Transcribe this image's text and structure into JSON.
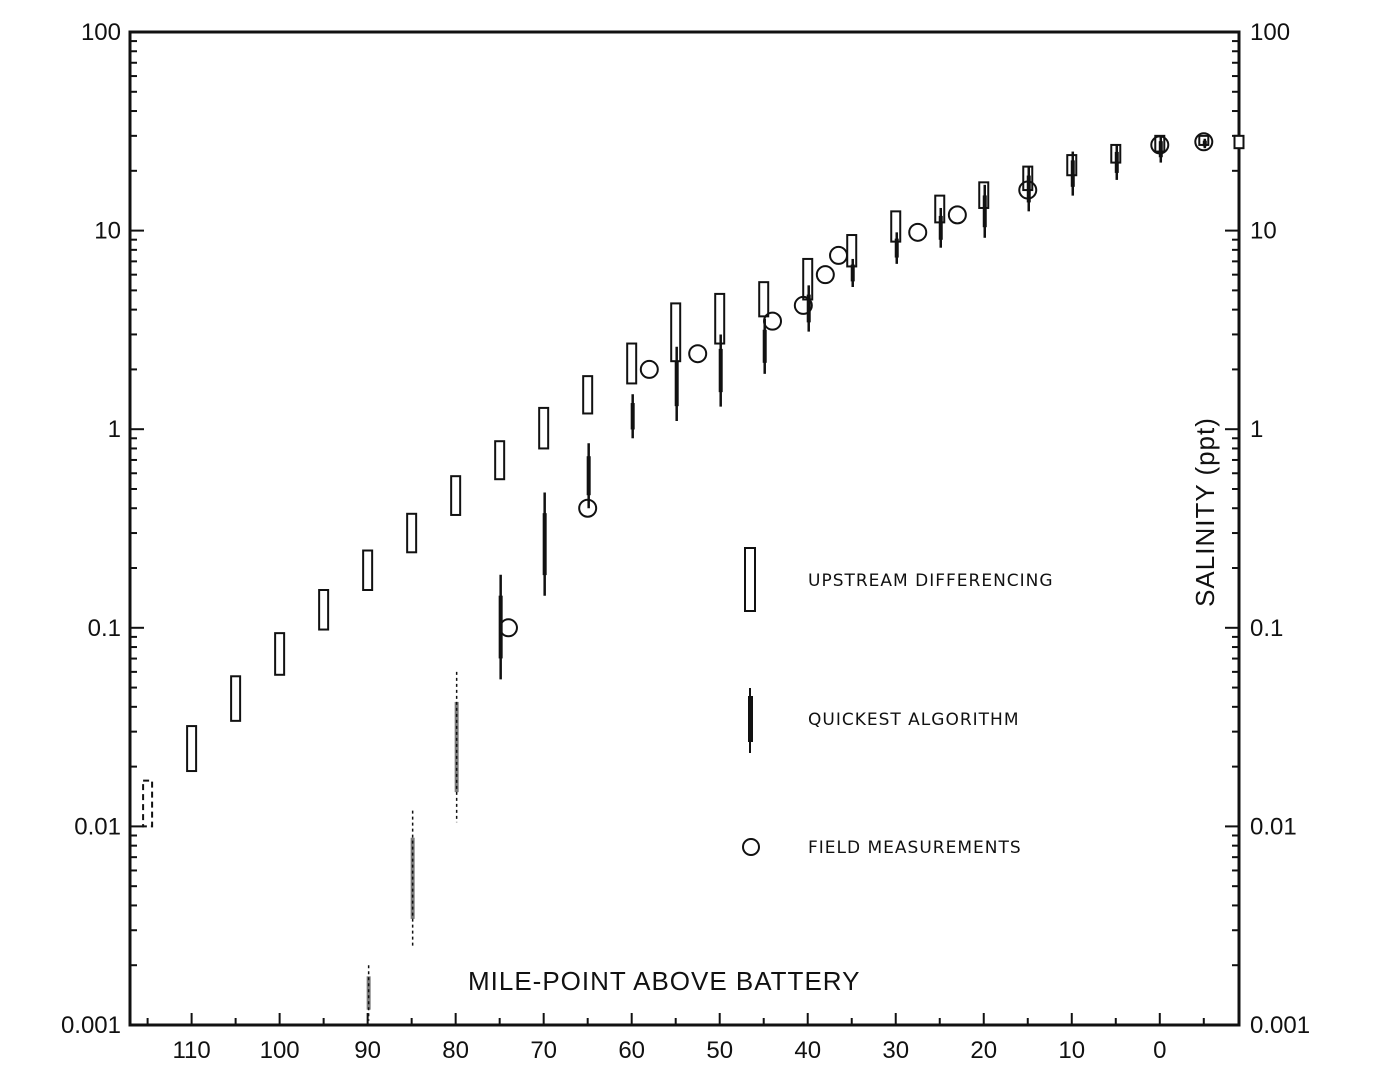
{
  "chart_data": {
    "type": "scatter",
    "title": "",
    "xlabel": "MILE-POINT ABOVE BATTERY",
    "ylabel": "SALINITY (ppt)",
    "x_direction": "reversed",
    "xlim": [
      117,
      -9
    ],
    "ylim": [
      0.001,
      100
    ],
    "y_scale": "log",
    "grid": false,
    "x_ticks": [
      110,
      100,
      90,
      80,
      70,
      60,
      50,
      40,
      30,
      20,
      10,
      0
    ],
    "x_tick_labels": [
      "110",
      "100",
      "90",
      "80",
      "70",
      "60",
      "50",
      "40",
      "30",
      "20",
      "10",
      "0"
    ],
    "y_ticks": [
      0.001,
      0.01,
      0.1,
      1,
      10,
      100
    ],
    "y_tick_labels": [
      "0.001",
      "0.01",
      "0.1",
      "1",
      "10",
      "100"
    ],
    "legend_position": "center-right",
    "series": [
      {
        "name": "UPSTREAM DIFFERENCING",
        "marker": "open-bar",
        "points": [
          {
            "x": 115,
            "low": 0.01,
            "high": 0.017
          },
          {
            "x": 110,
            "low": 0.019,
            "high": 0.032
          },
          {
            "x": 105,
            "low": 0.034,
            "high": 0.057
          },
          {
            "x": 100,
            "low": 0.058,
            "high": 0.094
          },
          {
            "x": 95,
            "low": 0.098,
            "high": 0.155
          },
          {
            "x": 90,
            "low": 0.155,
            "high": 0.245
          },
          {
            "x": 85,
            "low": 0.24,
            "high": 0.375
          },
          {
            "x": 80,
            "low": 0.37,
            "high": 0.58
          },
          {
            "x": 75,
            "low": 0.56,
            "high": 0.87
          },
          {
            "x": 70,
            "low": 0.8,
            "high": 1.28
          },
          {
            "x": 65,
            "low": 1.2,
            "high": 1.85
          },
          {
            "x": 60,
            "low": 1.7,
            "high": 2.7
          },
          {
            "x": 55,
            "low": 2.2,
            "high": 4.3
          },
          {
            "x": 50,
            "low": 2.7,
            "high": 4.8
          },
          {
            "x": 45,
            "low": 3.7,
            "high": 5.5
          },
          {
            "x": 40,
            "low": 4.5,
            "high": 7.2
          },
          {
            "x": 35,
            "low": 6.6,
            "high": 9.5
          },
          {
            "x": 30,
            "low": 8.8,
            "high": 12.5
          },
          {
            "x": 25,
            "low": 11,
            "high": 15
          },
          {
            "x": 20,
            "low": 13,
            "high": 17.5
          },
          {
            "x": 15,
            "low": 16,
            "high": 21
          },
          {
            "x": 10,
            "low": 19,
            "high": 24
          },
          {
            "x": 5,
            "low": 22,
            "high": 27
          },
          {
            "x": 0,
            "low": 25,
            "high": 30
          },
          {
            "x": -5,
            "low": 27,
            "high": 30
          },
          {
            "x": -9,
            "low": 26,
            "high": 30
          }
        ]
      },
      {
        "name": "QUICKEST ALGORITHM",
        "marker": "filled-bar",
        "points": [
          {
            "x": 90,
            "low": 0.00105,
            "high": 0.002
          },
          {
            "x": 85,
            "low": 0.0025,
            "high": 0.012
          },
          {
            "x": 80,
            "low": 0.0105,
            "high": 0.06
          },
          {
            "x": 75,
            "low": 0.055,
            "high": 0.185
          },
          {
            "x": 70,
            "low": 0.145,
            "high": 0.48
          },
          {
            "x": 65,
            "low": 0.4,
            "high": 0.85
          },
          {
            "x": 60,
            "low": 0.9,
            "high": 1.5
          },
          {
            "x": 55,
            "low": 1.1,
            "high": 2.6
          },
          {
            "x": 50,
            "low": 1.3,
            "high": 3
          },
          {
            "x": 45,
            "low": 1.9,
            "high": 3.6
          },
          {
            "x": 40,
            "low": 3.1,
            "high": 5.3
          },
          {
            "x": 35,
            "low": 5.2,
            "high": 7.2
          },
          {
            "x": 30,
            "low": 6.8,
            "high": 9.8
          },
          {
            "x": 25,
            "low": 8.2,
            "high": 13
          },
          {
            "x": 20,
            "low": 9.2,
            "high": 17
          },
          {
            "x": 15,
            "low": 12.5,
            "high": 21
          },
          {
            "x": 10,
            "low": 15,
            "high": 25
          },
          {
            "x": 5,
            "low": 18,
            "high": 27
          },
          {
            "x": 0,
            "low": 22,
            "high": 30
          },
          {
            "x": -5,
            "low": 26,
            "high": 29
          }
        ]
      },
      {
        "name": "FIELD MEASUREMENTS",
        "marker": "open-circle",
        "points": [
          {
            "x": 65,
            "y": 0.4
          },
          {
            "x": 74,
            "y": 0.1
          },
          {
            "x": 58,
            "y": 2
          },
          {
            "x": 52.5,
            "y": 2.4
          },
          {
            "x": 44,
            "y": 3.5
          },
          {
            "x": 40.5,
            "y": 4.2
          },
          {
            "x": 38,
            "y": 6
          },
          {
            "x": 36.5,
            "y": 7.5
          },
          {
            "x": 27.5,
            "y": 9.8
          },
          {
            "x": 23,
            "y": 12
          },
          {
            "x": 15,
            "y": 16
          },
          {
            "x": 0,
            "y": 27
          },
          {
            "x": -5,
            "y": 28
          }
        ]
      }
    ]
  },
  "legend": {
    "items": [
      {
        "label": "UPSTREAM DIFFERENCING",
        "marker": "open-bar"
      },
      {
        "label": "QUICKEST ALGORITHM",
        "marker": "filled-bar"
      },
      {
        "label": "FIELD MEASUREMENTS",
        "marker": "open-circle"
      }
    ]
  }
}
